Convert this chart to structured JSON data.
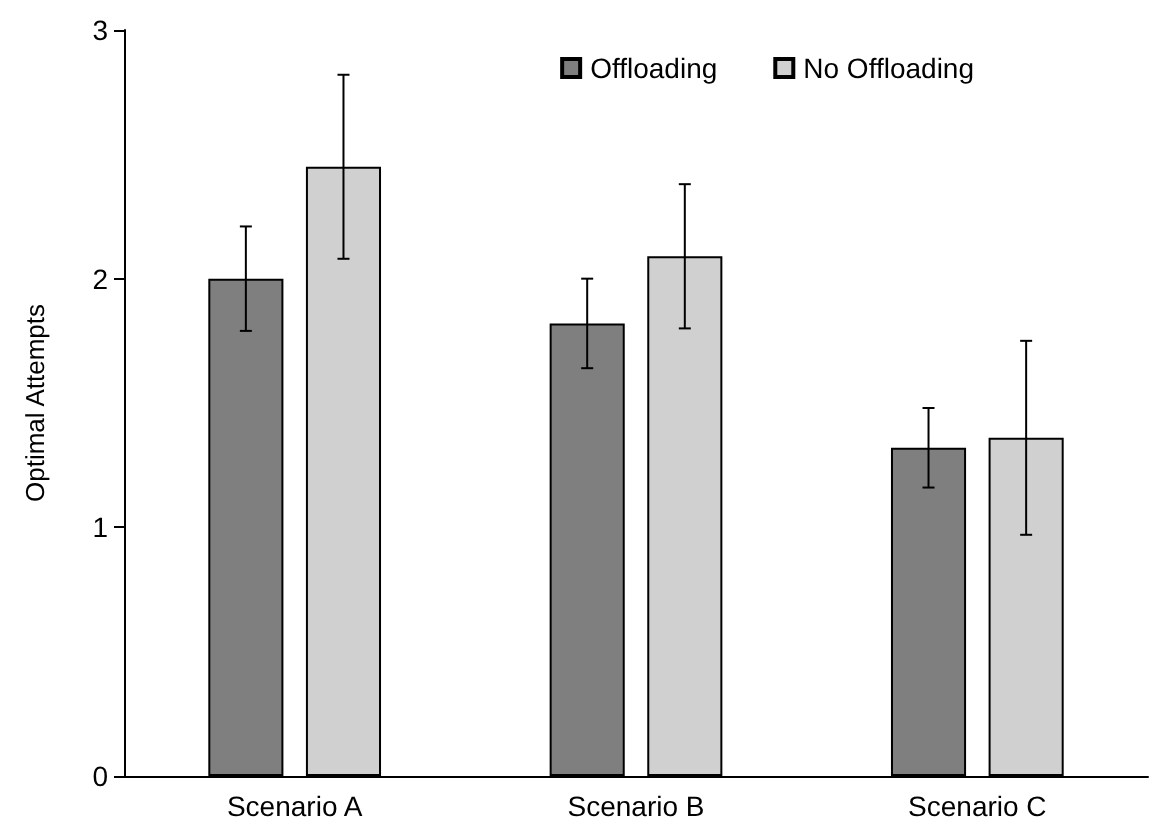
{
  "chart_data": {
    "type": "bar",
    "ylabel": "Optimal Attempts",
    "categories": [
      "Scenario A",
      "Scenario B",
      "Scenario C"
    ],
    "series": [
      {
        "name": "Offloading",
        "color": "#7f7f7f",
        "values": [
          2.0,
          1.82,
          1.32
        ],
        "errors": [
          0.21,
          0.18,
          0.16
        ]
      },
      {
        "name": "No Offloading",
        "color": "#d0d0d0",
        "values": [
          2.45,
          2.09,
          1.36
        ],
        "errors": [
          0.37,
          0.29,
          0.39
        ]
      }
    ],
    "ylim": [
      0,
      3
    ],
    "yticks": [
      0,
      1,
      2,
      3
    ],
    "grid": false,
    "legend": "top right"
  }
}
